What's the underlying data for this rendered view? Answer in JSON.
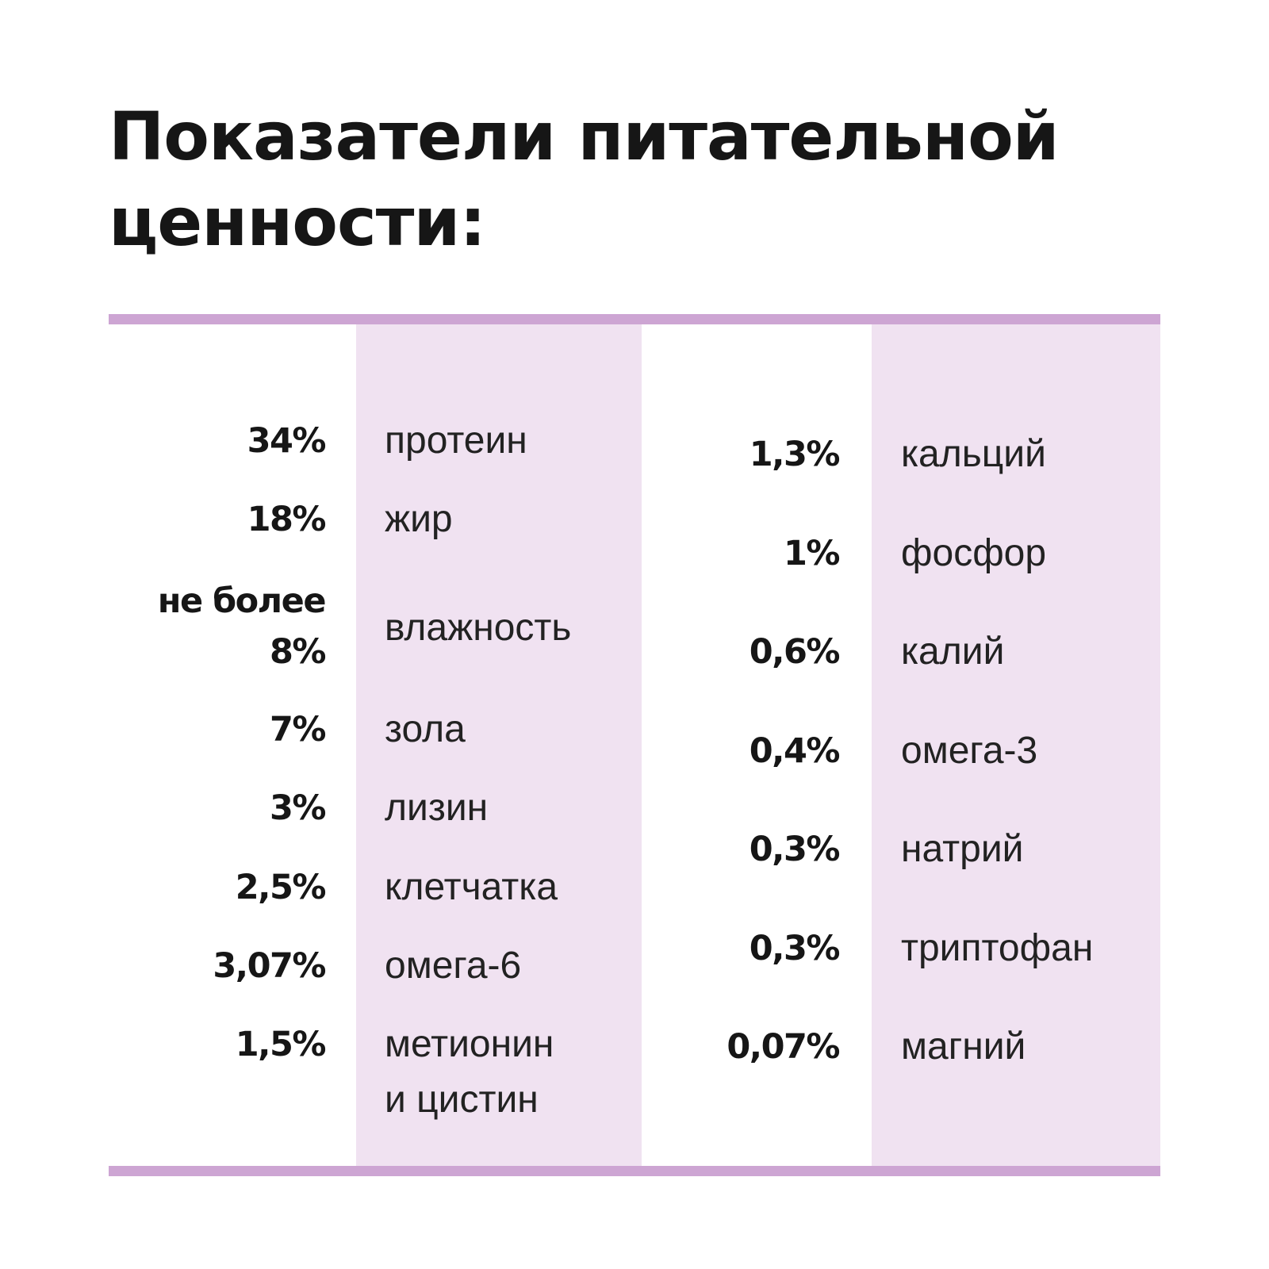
{
  "title": {
    "line1": "Показатели питательной",
    "line2": "ценности:"
  },
  "colors": {
    "accent_rule": "#cda5d3",
    "column_band": "#f0e2f1",
    "text": "#161616",
    "background": "#ffffff"
  },
  "left_column": [
    {
      "value": "34%",
      "name": "протеин"
    },
    {
      "value": "18%",
      "name": "жир"
    },
    {
      "value_line1": "не более",
      "value_line2": "8%",
      "name": "влажность"
    },
    {
      "value": "7%",
      "name": "зола"
    },
    {
      "value": "3%",
      "name": "лизин"
    },
    {
      "value": "2,5%",
      "name": "клетчатка"
    },
    {
      "value": "3,07%",
      "name": "омега-6"
    },
    {
      "value": "1,5%",
      "name_line1": "метионин",
      "name_line2": "и цистин"
    }
  ],
  "right_column": [
    {
      "value": "1,3%",
      "name": "кальций"
    },
    {
      "value": "1%",
      "name": "фосфор"
    },
    {
      "value": "0,6%",
      "name": "калий"
    },
    {
      "value": "0,4%",
      "name": "омега-3"
    },
    {
      "value": "0,3%",
      "name": "натрий"
    },
    {
      "value": "0,3%",
      "name": "триптофан"
    },
    {
      "value": "0,07%",
      "name": "магний"
    }
  ]
}
